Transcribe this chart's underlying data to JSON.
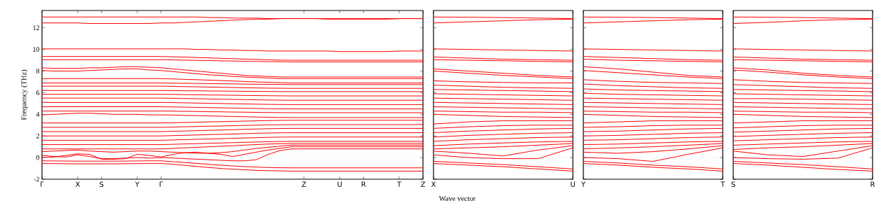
{
  "chart_data": [
    {
      "type": "line",
      "ylabel": "Frequency (THz)",
      "xlabel": "Wave vector",
      "line_style": "solid",
      "categories": [
        "Γ",
        null,
        null,
        "X",
        null,
        "S",
        null,
        null,
        "Y",
        null,
        "Γ",
        null,
        null,
        null,
        null,
        null,
        null,
        null,
        null,
        null,
        null,
        null,
        "Z",
        null,
        null,
        "U",
        null,
        "R",
        null,
        null,
        "T",
        null,
        "Z"
      ],
      "ylim": [
        -2,
        13.6
      ],
      "yticks": [
        -2,
        0,
        2,
        4,
        6,
        8,
        10,
        12
      ],
      "ref_lines": [
        {
          "axis": "y",
          "value": 0,
          "color": "#6f6fff",
          "line_style": "dotted"
        }
      ],
      "series": [
        {
          "color": "#ff0000",
          "values": [
            13,
            13,
            13,
            13,
            13,
            13,
            13,
            13,
            13,
            13,
            13,
            13,
            13,
            13,
            12.95,
            12.95,
            12.9,
            12.9,
            12.9,
            12.85,
            12.85,
            12.85,
            12.85,
            12.85,
            12.85,
            12.85,
            12.85,
            12.85,
            12.85,
            12.85,
            12.85,
            12.85,
            12.85
          ]
        },
        {
          "color": "#ff0000",
          "values": [
            12.45,
            12.45,
            12.45,
            12.45,
            12.4,
            12.4,
            12.4,
            12.4,
            12.4,
            12.4,
            12.45,
            12.45,
            12.5,
            12.55,
            12.6,
            12.65,
            12.7,
            12.75,
            12.8,
            12.8,
            12.85,
            12.85,
            12.85,
            12.85,
            12.8,
            12.8,
            12.8,
            12.8,
            12.8,
            12.8,
            12.85,
            12.85,
            12.85
          ]
        },
        {
          "color": "#ff0000",
          "values": [
            10.05,
            10.05,
            10.05,
            10.05,
            10.05,
            10.05,
            10.05,
            10.05,
            10.05,
            10.05,
            10.05,
            10.05,
            10.05,
            10.0,
            10.0,
            9.95,
            9.95,
            9.9,
            9.9,
            9.85,
            9.85,
            9.85,
            9.85,
            9.85,
            9.85,
            9.8,
            9.8,
            9.8,
            9.8,
            9.8,
            9.85,
            9.85,
            9.85
          ]
        },
        {
          "color": "#ff0000",
          "values": [
            9.35,
            9.35,
            9.35,
            9.35,
            9.35,
            9.35,
            9.35,
            9.35,
            9.35,
            9.35,
            9.35,
            9.32,
            9.29,
            9.25,
            9.22,
            9.18,
            9.15,
            9.11,
            9.08,
            9.04,
            9.01,
            9.0,
            9.0,
            9.0,
            9.0,
            9.0,
            9.0,
            9.0,
            9.0,
            9.0,
            9.0,
            9.0,
            9.0
          ]
        },
        {
          "color": "#ff0000",
          "values": [
            9.05,
            9.05,
            9.05,
            9.05,
            9.05,
            9.05,
            9.05,
            9.05,
            9.05,
            9.05,
            9.05,
            9.03,
            9.01,
            8.99,
            8.97,
            8.95,
            8.93,
            8.91,
            8.89,
            8.87,
            8.86,
            8.85,
            8.85,
            8.85,
            8.85,
            8.85,
            8.85,
            8.85,
            8.85,
            8.85,
            8.85,
            8.85,
            8.85
          ]
        },
        {
          "color": "#ff0000",
          "values": [
            8.3,
            8.25,
            8.25,
            8.25,
            8.3,
            8.3,
            8.35,
            8.4,
            8.4,
            8.35,
            8.3,
            8.2,
            8.1,
            8.0,
            7.9,
            7.8,
            7.7,
            7.6,
            7.55,
            7.5,
            7.45,
            7.45,
            7.45,
            7.45,
            7.45,
            7.45,
            7.45,
            7.45,
            7.45,
            7.45,
            7.45,
            7.45,
            7.45
          ]
        },
        {
          "color": "#ff0000",
          "values": [
            8.05,
            8.0,
            8.0,
            8.0,
            8.05,
            8.1,
            8.15,
            8.2,
            8.2,
            8.1,
            8.05,
            7.95,
            7.85,
            7.75,
            7.65,
            7.6,
            7.5,
            7.45,
            7.4,
            7.35,
            7.3,
            7.3,
            7.3,
            7.3,
            7.3,
            7.3,
            7.3,
            7.3,
            7.3,
            7.3,
            7.3,
            7.3,
            7.3
          ]
        },
        {
          "color": "#ff0000",
          "values": [
            7.3,
            7.3,
            7.3,
            7.3,
            7.3,
            7.3,
            7.3,
            7.3,
            7.3,
            7.3,
            7.3,
            7.27,
            7.23,
            7.2,
            7.16,
            7.12,
            7.08,
            7.04,
            7.0,
            6.96,
            6.93,
            6.9,
            6.9,
            6.9,
            6.9,
            6.9,
            6.9,
            6.9,
            6.9,
            6.9,
            6.9,
            6.9,
            6.9
          ]
        },
        {
          "color": "#ff0000",
          "values": [
            6.9,
            6.9,
            6.9,
            6.9,
            6.9,
            6.9,
            6.9,
            6.9,
            6.9,
            6.9,
            6.9,
            6.88,
            6.87,
            6.86,
            6.84,
            6.83,
            6.81,
            6.8,
            6.78,
            6.77,
            6.76,
            6.75,
            6.75,
            6.75,
            6.75,
            6.75,
            6.75,
            6.75,
            6.75,
            6.75,
            6.75,
            6.75,
            6.75
          ]
        },
        {
          "color": "#ff0000",
          "values": [
            6.6,
            6.6,
            6.6,
            6.6,
            6.6,
            6.6,
            6.6,
            6.6,
            6.6,
            6.6,
            6.6,
            6.58,
            6.56,
            6.54,
            6.52,
            6.5,
            6.48,
            6.46,
            6.44,
            6.42,
            6.41,
            6.4,
            6.4,
            6.4,
            6.4,
            6.4,
            6.4,
            6.4,
            6.4,
            6.4,
            6.4,
            6.4,
            6.4
          ]
        },
        {
          "color": "#ff0000",
          "values": [
            6.2,
            6.2,
            6.2,
            6.2,
            6.2,
            6.2,
            6.2,
            6.2,
            6.2,
            6.2,
            6.2,
            6.19,
            6.18,
            6.17,
            6.16,
            6.15,
            6.14,
            6.13,
            6.12,
            6.11,
            6.1,
            6.1,
            6.1,
            6.1,
            6.1,
            6.1,
            6.1,
            6.1,
            6.1,
            6.1,
            6.1,
            6.1,
            6.1
          ]
        },
        {
          "color": "#ff0000",
          "values": [
            5.85,
            5.85,
            5.85,
            5.85,
            5.85,
            5.85,
            5.85,
            5.85,
            5.85,
            5.85,
            5.85,
            5.84,
            5.82,
            5.81,
            5.79,
            5.78,
            5.76,
            5.75,
            5.73,
            5.72,
            5.71,
            5.7,
            5.7,
            5.7,
            5.7,
            5.7,
            5.7,
            5.7,
            5.7,
            5.7,
            5.7,
            5.7,
            5.7
          ]
        },
        {
          "color": "#ff0000",
          "values": [
            5.5,
            5.5,
            5.5,
            5.5,
            5.5,
            5.5,
            5.5,
            5.5,
            5.5,
            5.5,
            5.5,
            5.48,
            5.46,
            5.44,
            5.42,
            5.4,
            5.38,
            5.36,
            5.34,
            5.32,
            5.31,
            5.3,
            5.3,
            5.3,
            5.3,
            5.3,
            5.3,
            5.3,
            5.3,
            5.3,
            5.3,
            5.3,
            5.3
          ]
        },
        {
          "color": "#ff0000",
          "values": [
            5.1,
            5.1,
            5.1,
            5.1,
            5.1,
            5.1,
            5.1,
            5.1,
            5.1,
            5.1,
            5.1,
            5.08,
            5.06,
            5.04,
            5.02,
            5.0,
            4.98,
            4.96,
            4.94,
            4.92,
            4.91,
            4.9,
            4.9,
            4.9,
            4.9,
            4.9,
            4.9,
            4.9,
            4.9,
            4.9,
            4.9,
            4.9,
            4.9
          ]
        },
        {
          "color": "#ff0000",
          "values": [
            4.7,
            4.7,
            4.7,
            4.7,
            4.7,
            4.7,
            4.7,
            4.7,
            4.7,
            4.7,
            4.7,
            4.68,
            4.66,
            4.64,
            4.62,
            4.6,
            4.58,
            4.56,
            4.54,
            4.52,
            4.51,
            4.5,
            4.5,
            4.5,
            4.5,
            4.5,
            4.5,
            4.5,
            4.5,
            4.5,
            4.5,
            4.5,
            4.5
          ]
        },
        {
          "color": "#ff0000",
          "values": [
            4.3,
            4.3,
            4.3,
            4.3,
            4.3,
            4.3,
            4.3,
            4.3,
            4.3,
            4.3,
            4.3,
            4.29,
            4.27,
            4.26,
            4.24,
            4.23,
            4.21,
            4.2,
            4.18,
            4.17,
            4.16,
            4.15,
            4.15,
            4.15,
            4.15,
            4.15,
            4.15,
            4.15,
            4.15,
            4.15,
            4.15,
            4.15,
            4.15
          ]
        },
        {
          "color": "#ff0000",
          "values": [
            3.95,
            4.0,
            4.05,
            4.1,
            4.1,
            4.05,
            4.0,
            4.0,
            4.0,
            3.95,
            3.95,
            3.93,
            3.9,
            3.88,
            3.85,
            3.83,
            3.8,
            3.78,
            3.75,
            3.73,
            3.71,
            3.7,
            3.7,
            3.7,
            3.7,
            3.7,
            3.7,
            3.7,
            3.7,
            3.7,
            3.7,
            3.7,
            3.7
          ]
        },
        {
          "color": "#ff0000",
          "values": [
            3.2,
            3.2,
            3.2,
            3.2,
            3.2,
            3.2,
            3.2,
            3.2,
            3.2,
            3.2,
            3.2,
            3.22,
            3.25,
            3.27,
            3.3,
            3.32,
            3.35,
            3.37,
            3.4,
            3.42,
            3.44,
            3.45,
            3.45,
            3.45,
            3.45,
            3.45,
            3.45,
            3.45,
            3.45,
            3.45,
            3.45,
            3.45,
            3.45
          ]
        },
        {
          "color": "#ff0000",
          "values": [
            2.8,
            2.8,
            2.8,
            2.8,
            2.8,
            2.8,
            2.8,
            2.8,
            2.8,
            2.8,
            2.8,
            2.82,
            2.85,
            2.87,
            2.9,
            2.92,
            2.95,
            2.97,
            3.0,
            3.02,
            3.04,
            3.05,
            3.05,
            3.05,
            3.05,
            3.05,
            3.05,
            3.05,
            3.05,
            3.05,
            3.05,
            3.05,
            3.05
          ]
        },
        {
          "color": "#ff0000",
          "values": [
            2.4,
            2.4,
            2.4,
            2.4,
            2.4,
            2.4,
            2.4,
            2.4,
            2.4,
            2.4,
            2.4,
            2.43,
            2.46,
            2.49,
            2.52,
            2.55,
            2.58,
            2.61,
            2.64,
            2.67,
            2.69,
            2.7,
            2.7,
            2.7,
            2.7,
            2.7,
            2.7,
            2.7,
            2.7,
            2.7,
            2.7,
            2.7,
            2.7
          ]
        },
        {
          "color": "#ff0000",
          "values": [
            2.0,
            2.0,
            2.0,
            2.0,
            2.0,
            2.0,
            2.0,
            2.0,
            2.0,
            2.0,
            2.0,
            2.03,
            2.06,
            2.09,
            2.12,
            2.15,
            2.18,
            2.21,
            2.24,
            2.27,
            2.29,
            2.3,
            2.3,
            2.3,
            2.3,
            2.3,
            2.3,
            2.3,
            2.3,
            2.3,
            2.3,
            2.3,
            2.3
          ]
        },
        {
          "color": "#ff0000",
          "values": [
            1.6,
            1.6,
            1.6,
            1.6,
            1.6,
            1.6,
            1.6,
            1.6,
            1.6,
            1.6,
            1.6,
            1.63,
            1.66,
            1.69,
            1.72,
            1.75,
            1.78,
            1.81,
            1.84,
            1.87,
            1.89,
            1.9,
            1.9,
            1.9,
            1.9,
            1.9,
            1.9,
            1.9,
            1.9,
            1.9,
            1.9,
            1.9,
            1.9
          ]
        },
        {
          "color": "#ff0000",
          "values": [
            1.2,
            1.2,
            1.2,
            1.2,
            1.2,
            1.2,
            1.2,
            1.2,
            1.2,
            1.2,
            1.2,
            1.23,
            1.26,
            1.29,
            1.32,
            1.35,
            1.38,
            1.41,
            1.44,
            1.47,
            1.49,
            1.5,
            1.5,
            1.5,
            1.5,
            1.5,
            1.5,
            1.5,
            1.5,
            1.5,
            1.5,
            1.5,
            1.5
          ]
        },
        {
          "color": "#ff0000",
          "values": [
            0.8,
            0.8,
            0.8,
            0.8,
            0.8,
            0.8,
            0.8,
            0.8,
            0.8,
            0.8,
            0.8,
            0.85,
            0.9,
            0.95,
            1.0,
            1.05,
            1.1,
            1.15,
            1.2,
            1.25,
            1.28,
            1.3,
            1.3,
            1.3,
            1.3,
            1.3,
            1.3,
            1.3,
            1.3,
            1.3,
            1.3,
            1.3,
            1.3
          ]
        },
        {
          "color": "#ff0000",
          "values": [
            0.55,
            0.6,
            0.65,
            0.7,
            0.6,
            0.55,
            0.5,
            0.55,
            0.6,
            0.6,
            0.55,
            0.5,
            0.45,
            0.4,
            0.4,
            0.45,
            0.55,
            0.7,
            0.85,
            0.95,
            1.05,
            1.15,
            1.15,
            1.15,
            1.15,
            1.15,
            1.15,
            1.15,
            1.15,
            1.15,
            1.15,
            1.15,
            1.15
          ]
        },
        {
          "color": "#ff0000",
          "values": [
            0.0,
            0.05,
            0.2,
            0.35,
            0.3,
            -0.15,
            -0.15,
            -0.1,
            0.3,
            0.2,
            0.05,
            0.3,
            0.45,
            0.5,
            0.4,
            0.3,
            0.1,
            0.3,
            0.5,
            0.7,
            0.85,
            1.0,
            1.0,
            1.0,
            1.0,
            1.0,
            1.0,
            1.0,
            1.0,
            1.0,
            1.0,
            1.0,
            1.0
          ]
        },
        {
          "color": "#ff0000",
          "values": [
            0.2,
            0.1,
            0.05,
            0.25,
            0.1,
            -0.1,
            -0.1,
            -0.05,
            0.0,
            -0.05,
            0.0,
            -0.05,
            -0.1,
            -0.15,
            -0.2,
            -0.25,
            -0.3,
            -0.3,
            -0.2,
            0.3,
            0.65,
            0.8,
            0.8,
            0.8,
            0.8,
            0.8,
            0.8,
            0.8,
            0.8,
            0.8,
            0.8,
            0.8,
            0.8
          ]
        },
        {
          "color": "#ff0000",
          "values": [
            -0.55,
            -0.56,
            -0.57,
            -0.58,
            -0.58,
            -0.58,
            -0.58,
            -0.57,
            -0.56,
            -0.55,
            -0.55,
            -0.62,
            -0.72,
            -0.82,
            -0.92,
            -1.0,
            -1.07,
            -1.13,
            -1.18,
            -1.21,
            -1.23,
            -1.25,
            -1.25,
            -1.25,
            -1.25,
            -1.25,
            -1.25,
            -1.25,
            -1.25,
            -1.25,
            -1.25,
            -1.25,
            -1.25
          ]
        },
        {
          "color": "#ff0000",
          "values": [
            -0.3,
            -0.31,
            -0.32,
            -0.33,
            -0.33,
            -0.33,
            -0.33,
            -0.32,
            -0.31,
            -0.3,
            -0.3,
            -0.38,
            -0.46,
            -0.54,
            -0.62,
            -0.7,
            -0.77,
            -0.83,
            -0.88,
            -0.92,
            -0.94,
            -0.95,
            -0.95,
            -0.95,
            -0.95,
            -0.95,
            -0.95,
            -0.95,
            -0.95,
            -0.95,
            -0.95,
            -0.95,
            -0.95
          ]
        }
      ]
    },
    {
      "type": "line",
      "tick_labels": "x",
      "line_style": "solid",
      "categories": [
        "X",
        null,
        null,
        null,
        "U"
      ],
      "ylim": [
        -2,
        13.6
      ],
      "yticks": [
        -2,
        0,
        2,
        4,
        6,
        8,
        10,
        12
      ],
      "ref_lines": [
        {
          "axis": "y",
          "value": 0,
          "color": "#6f6fff",
          "line_style": "dotted"
        }
      ],
      "series": [
        {
          "color": "#ff0000",
          "values": [
            13.0,
            12.98,
            12.95,
            12.9,
            12.85
          ]
        },
        {
          "color": "#ff0000",
          "values": [
            12.45,
            12.55,
            12.65,
            12.75,
            12.8
          ]
        },
        {
          "color": "#ff0000",
          "values": [
            10.05,
            10.0,
            9.95,
            9.9,
            9.85
          ]
        },
        {
          "color": "#ff0000",
          "values": [
            9.3,
            9.2,
            9.1,
            9.05,
            9.0
          ]
        },
        {
          "color": "#ff0000",
          "values": [
            9.05,
            9.0,
            8.95,
            8.9,
            8.85
          ]
        },
        {
          "color": "#ff0000",
          "values": [
            8.2,
            8.0,
            7.8,
            7.6,
            7.45
          ]
        },
        {
          "color": "#ff0000",
          "values": [
            8.0,
            7.8,
            7.6,
            7.45,
            7.3
          ]
        },
        {
          "color": "#ff0000",
          "values": [
            7.1,
            7.0,
            6.95,
            6.9,
            6.9
          ]
        },
        {
          "color": "#ff0000",
          "values": [
            6.7,
            6.6,
            6.5,
            6.45,
            6.4
          ]
        },
        {
          "color": "#ff0000",
          "values": [
            6.3,
            6.25,
            6.2,
            6.15,
            6.1
          ]
        },
        {
          "color": "#ff0000",
          "values": [
            5.9,
            5.85,
            5.8,
            5.75,
            5.7
          ]
        },
        {
          "color": "#ff0000",
          "values": [
            5.5,
            5.45,
            5.4,
            5.35,
            5.3
          ]
        },
        {
          "color": "#ff0000",
          "values": [
            5.1,
            5.05,
            5.0,
            4.95,
            4.9
          ]
        },
        {
          "color": "#ff0000",
          "values": [
            4.7,
            4.65,
            4.6,
            4.55,
            4.5
          ]
        },
        {
          "color": "#ff0000",
          "values": [
            4.3,
            4.25,
            4.2,
            4.2,
            4.15
          ]
        },
        {
          "color": "#ff0000",
          "values": [
            4.0,
            3.9,
            3.8,
            3.75,
            3.7
          ]
        },
        {
          "color": "#ff0000",
          "values": [
            3.1,
            3.3,
            3.4,
            3.4,
            3.4
          ]
        },
        {
          "color": "#ff0000",
          "values": [
            2.7,
            2.85,
            2.95,
            3.0,
            3.0
          ]
        },
        {
          "color": "#ff0000",
          "values": [
            2.3,
            2.45,
            2.55,
            2.65,
            2.7
          ]
        },
        {
          "color": "#ff0000",
          "values": [
            1.9,
            2.05,
            2.15,
            2.25,
            2.3
          ]
        },
        {
          "color": "#ff0000",
          "values": [
            1.5,
            1.65,
            1.75,
            1.85,
            1.9
          ]
        },
        {
          "color": "#ff0000",
          "values": [
            1.1,
            1.25,
            1.35,
            1.45,
            1.5
          ]
        },
        {
          "color": "#ff0000",
          "values": [
            0.8,
            0.9,
            1.0,
            1.15,
            1.3
          ]
        },
        {
          "color": "#ff0000",
          "values": [
            0.6,
            0.4,
            0.15,
            0.7,
            1.1
          ]
        },
        {
          "color": "#ff0000",
          "values": [
            0.25,
            0.0,
            -0.1,
            -0.1,
            0.9
          ]
        },
        {
          "color": "#ff0000",
          "values": [
            -0.55,
            -0.7,
            -0.85,
            -1.05,
            -1.25
          ]
        },
        {
          "color": "#ff0000",
          "values": [
            -0.35,
            -0.5,
            -0.65,
            -0.85,
            -1.05
          ]
        }
      ]
    },
    {
      "type": "line",
      "tick_labels": "x",
      "line_style": "solid",
      "categories": [
        "Y",
        null,
        null,
        null,
        "T"
      ],
      "ylim": [
        -2,
        13.6
      ],
      "yticks": [
        -2,
        0,
        2,
        4,
        6,
        8,
        10,
        12
      ],
      "ref_lines": [
        {
          "axis": "y",
          "value": 0,
          "color": "#6f6fff",
          "line_style": "dotted"
        }
      ],
      "series": [
        {
          "color": "#ff0000",
          "values": [
            13.0,
            12.98,
            12.95,
            12.9,
            12.85
          ]
        },
        {
          "color": "#ff0000",
          "values": [
            12.45,
            12.55,
            12.65,
            12.75,
            12.8
          ]
        },
        {
          "color": "#ff0000",
          "values": [
            10.05,
            10.0,
            9.95,
            9.9,
            9.85
          ]
        },
        {
          "color": "#ff0000",
          "values": [
            9.35,
            9.25,
            9.15,
            9.05,
            9.0
          ]
        },
        {
          "color": "#ff0000",
          "values": [
            9.1,
            9.0,
            8.95,
            8.9,
            8.85
          ]
        },
        {
          "color": "#ff0000",
          "values": [
            8.4,
            8.2,
            7.9,
            7.6,
            7.45
          ]
        },
        {
          "color": "#ff0000",
          "values": [
            8.05,
            7.85,
            7.65,
            7.45,
            7.3
          ]
        },
        {
          "color": "#ff0000",
          "values": [
            7.2,
            7.05,
            6.95,
            6.9,
            6.85
          ]
        },
        {
          "color": "#ff0000",
          "values": [
            6.8,
            6.65,
            6.55,
            6.45,
            6.4
          ]
        },
        {
          "color": "#ff0000",
          "values": [
            6.35,
            6.25,
            6.2,
            6.15,
            6.1
          ]
        },
        {
          "color": "#ff0000",
          "values": [
            5.95,
            5.85,
            5.8,
            5.75,
            5.7
          ]
        },
        {
          "color": "#ff0000",
          "values": [
            5.5,
            5.45,
            5.4,
            5.35,
            5.3
          ]
        },
        {
          "color": "#ff0000",
          "values": [
            5.1,
            5.05,
            5.0,
            4.95,
            4.9
          ]
        },
        {
          "color": "#ff0000",
          "values": [
            4.7,
            4.65,
            4.6,
            4.55,
            4.5
          ]
        },
        {
          "color": "#ff0000",
          "values": [
            4.3,
            4.25,
            4.2,
            4.2,
            4.15
          ]
        },
        {
          "color": "#ff0000",
          "values": [
            4.0,
            3.9,
            3.8,
            3.75,
            3.7
          ]
        },
        {
          "color": "#ff0000",
          "values": [
            3.2,
            3.3,
            3.4,
            3.4,
            3.4
          ]
        },
        {
          "color": "#ff0000",
          "values": [
            2.8,
            2.85,
            2.95,
            3.0,
            3.0
          ]
        },
        {
          "color": "#ff0000",
          "values": [
            2.4,
            2.45,
            2.55,
            2.65,
            2.7
          ]
        },
        {
          "color": "#ff0000",
          "values": [
            2.0,
            2.05,
            2.15,
            2.25,
            2.3
          ]
        },
        {
          "color": "#ff0000",
          "values": [
            1.6,
            1.65,
            1.75,
            1.85,
            1.9
          ]
        },
        {
          "color": "#ff0000",
          "values": [
            1.2,
            1.25,
            1.35,
            1.45,
            1.5
          ]
        },
        {
          "color": "#ff0000",
          "values": [
            0.8,
            0.9,
            1.0,
            1.15,
            1.3
          ]
        },
        {
          "color": "#ff0000",
          "values": [
            0.5,
            0.4,
            0.55,
            0.8,
            1.1
          ]
        },
        {
          "color": "#ff0000",
          "values": [
            0.0,
            -0.1,
            -0.35,
            0.3,
            0.9
          ]
        },
        {
          "color": "#ff0000",
          "values": [
            -0.55,
            -0.7,
            -0.9,
            -1.05,
            -1.25
          ]
        },
        {
          "color": "#ff0000",
          "values": [
            -0.35,
            -0.5,
            -0.7,
            -0.85,
            -1.05
          ]
        }
      ]
    },
    {
      "type": "line",
      "tick_labels": "x",
      "line_style": "solid",
      "categories": [
        "S",
        null,
        null,
        null,
        "R"
      ],
      "ylim": [
        -2,
        13.6
      ],
      "yticks": [
        -2,
        0,
        2,
        4,
        6,
        8,
        10,
        12
      ],
      "ref_lines": [
        {
          "axis": "y",
          "value": 0,
          "color": "#6f6fff",
          "line_style": "dotted"
        }
      ],
      "series": [
        {
          "color": "#ff0000",
          "values": [
            13.0,
            12.98,
            12.95,
            12.9,
            12.85
          ]
        },
        {
          "color": "#ff0000",
          "values": [
            12.4,
            12.5,
            12.65,
            12.75,
            12.8
          ]
        },
        {
          "color": "#ff0000",
          "values": [
            10.05,
            10.0,
            9.95,
            9.9,
            9.85
          ]
        },
        {
          "color": "#ff0000",
          "values": [
            9.3,
            9.2,
            9.1,
            9.05,
            9.0
          ]
        },
        {
          "color": "#ff0000",
          "values": [
            9.05,
            9.0,
            8.95,
            8.9,
            8.85
          ]
        },
        {
          "color": "#ff0000",
          "values": [
            8.3,
            8.1,
            7.8,
            7.6,
            7.45
          ]
        },
        {
          "color": "#ff0000",
          "values": [
            8.1,
            7.9,
            7.65,
            7.45,
            7.3
          ]
        },
        {
          "color": "#ff0000",
          "values": [
            7.2,
            7.05,
            6.95,
            6.9,
            6.85
          ]
        },
        {
          "color": "#ff0000",
          "values": [
            6.75,
            6.65,
            6.55,
            6.45,
            6.4
          ]
        },
        {
          "color": "#ff0000",
          "values": [
            6.3,
            6.25,
            6.2,
            6.15,
            6.1
          ]
        },
        {
          "color": "#ff0000",
          "values": [
            5.9,
            5.85,
            5.8,
            5.75,
            5.7
          ]
        },
        {
          "color": "#ff0000",
          "values": [
            5.45,
            5.45,
            5.4,
            5.35,
            5.3
          ]
        },
        {
          "color": "#ff0000",
          "values": [
            5.1,
            5.05,
            5.0,
            4.95,
            4.9
          ]
        },
        {
          "color": "#ff0000",
          "values": [
            4.7,
            4.65,
            4.6,
            4.55,
            4.5
          ]
        },
        {
          "color": "#ff0000",
          "values": [
            4.3,
            4.25,
            4.2,
            4.2,
            4.15
          ]
        },
        {
          "color": "#ff0000",
          "values": [
            4.0,
            3.9,
            3.8,
            3.75,
            3.7
          ]
        },
        {
          "color": "#ff0000",
          "values": [
            3.2,
            3.3,
            3.4,
            3.4,
            3.4
          ]
        },
        {
          "color": "#ff0000",
          "values": [
            2.75,
            2.85,
            2.95,
            3.0,
            3.0
          ]
        },
        {
          "color": "#ff0000",
          "values": [
            2.35,
            2.45,
            2.55,
            2.65,
            2.7
          ]
        },
        {
          "color": "#ff0000",
          "values": [
            1.95,
            2.05,
            2.15,
            2.25,
            2.3
          ]
        },
        {
          "color": "#ff0000",
          "values": [
            1.55,
            1.65,
            1.75,
            1.85,
            1.9
          ]
        },
        {
          "color": "#ff0000",
          "values": [
            1.15,
            1.25,
            1.35,
            1.45,
            1.5
          ]
        },
        {
          "color": "#ff0000",
          "values": [
            0.75,
            0.9,
            1.0,
            1.15,
            1.3
          ]
        },
        {
          "color": "#ff0000",
          "values": [
            0.6,
            0.25,
            0.1,
            0.6,
            1.1
          ]
        },
        {
          "color": "#ff0000",
          "values": [
            0.0,
            -0.1,
            -0.15,
            -0.05,
            0.9
          ]
        },
        {
          "color": "#ff0000",
          "values": [
            -0.55,
            -0.7,
            -0.9,
            -1.1,
            -1.25
          ]
        },
        {
          "color": "#ff0000",
          "values": [
            -0.35,
            -0.5,
            -0.65,
            -0.85,
            -1.05
          ]
        }
      ]
    }
  ]
}
